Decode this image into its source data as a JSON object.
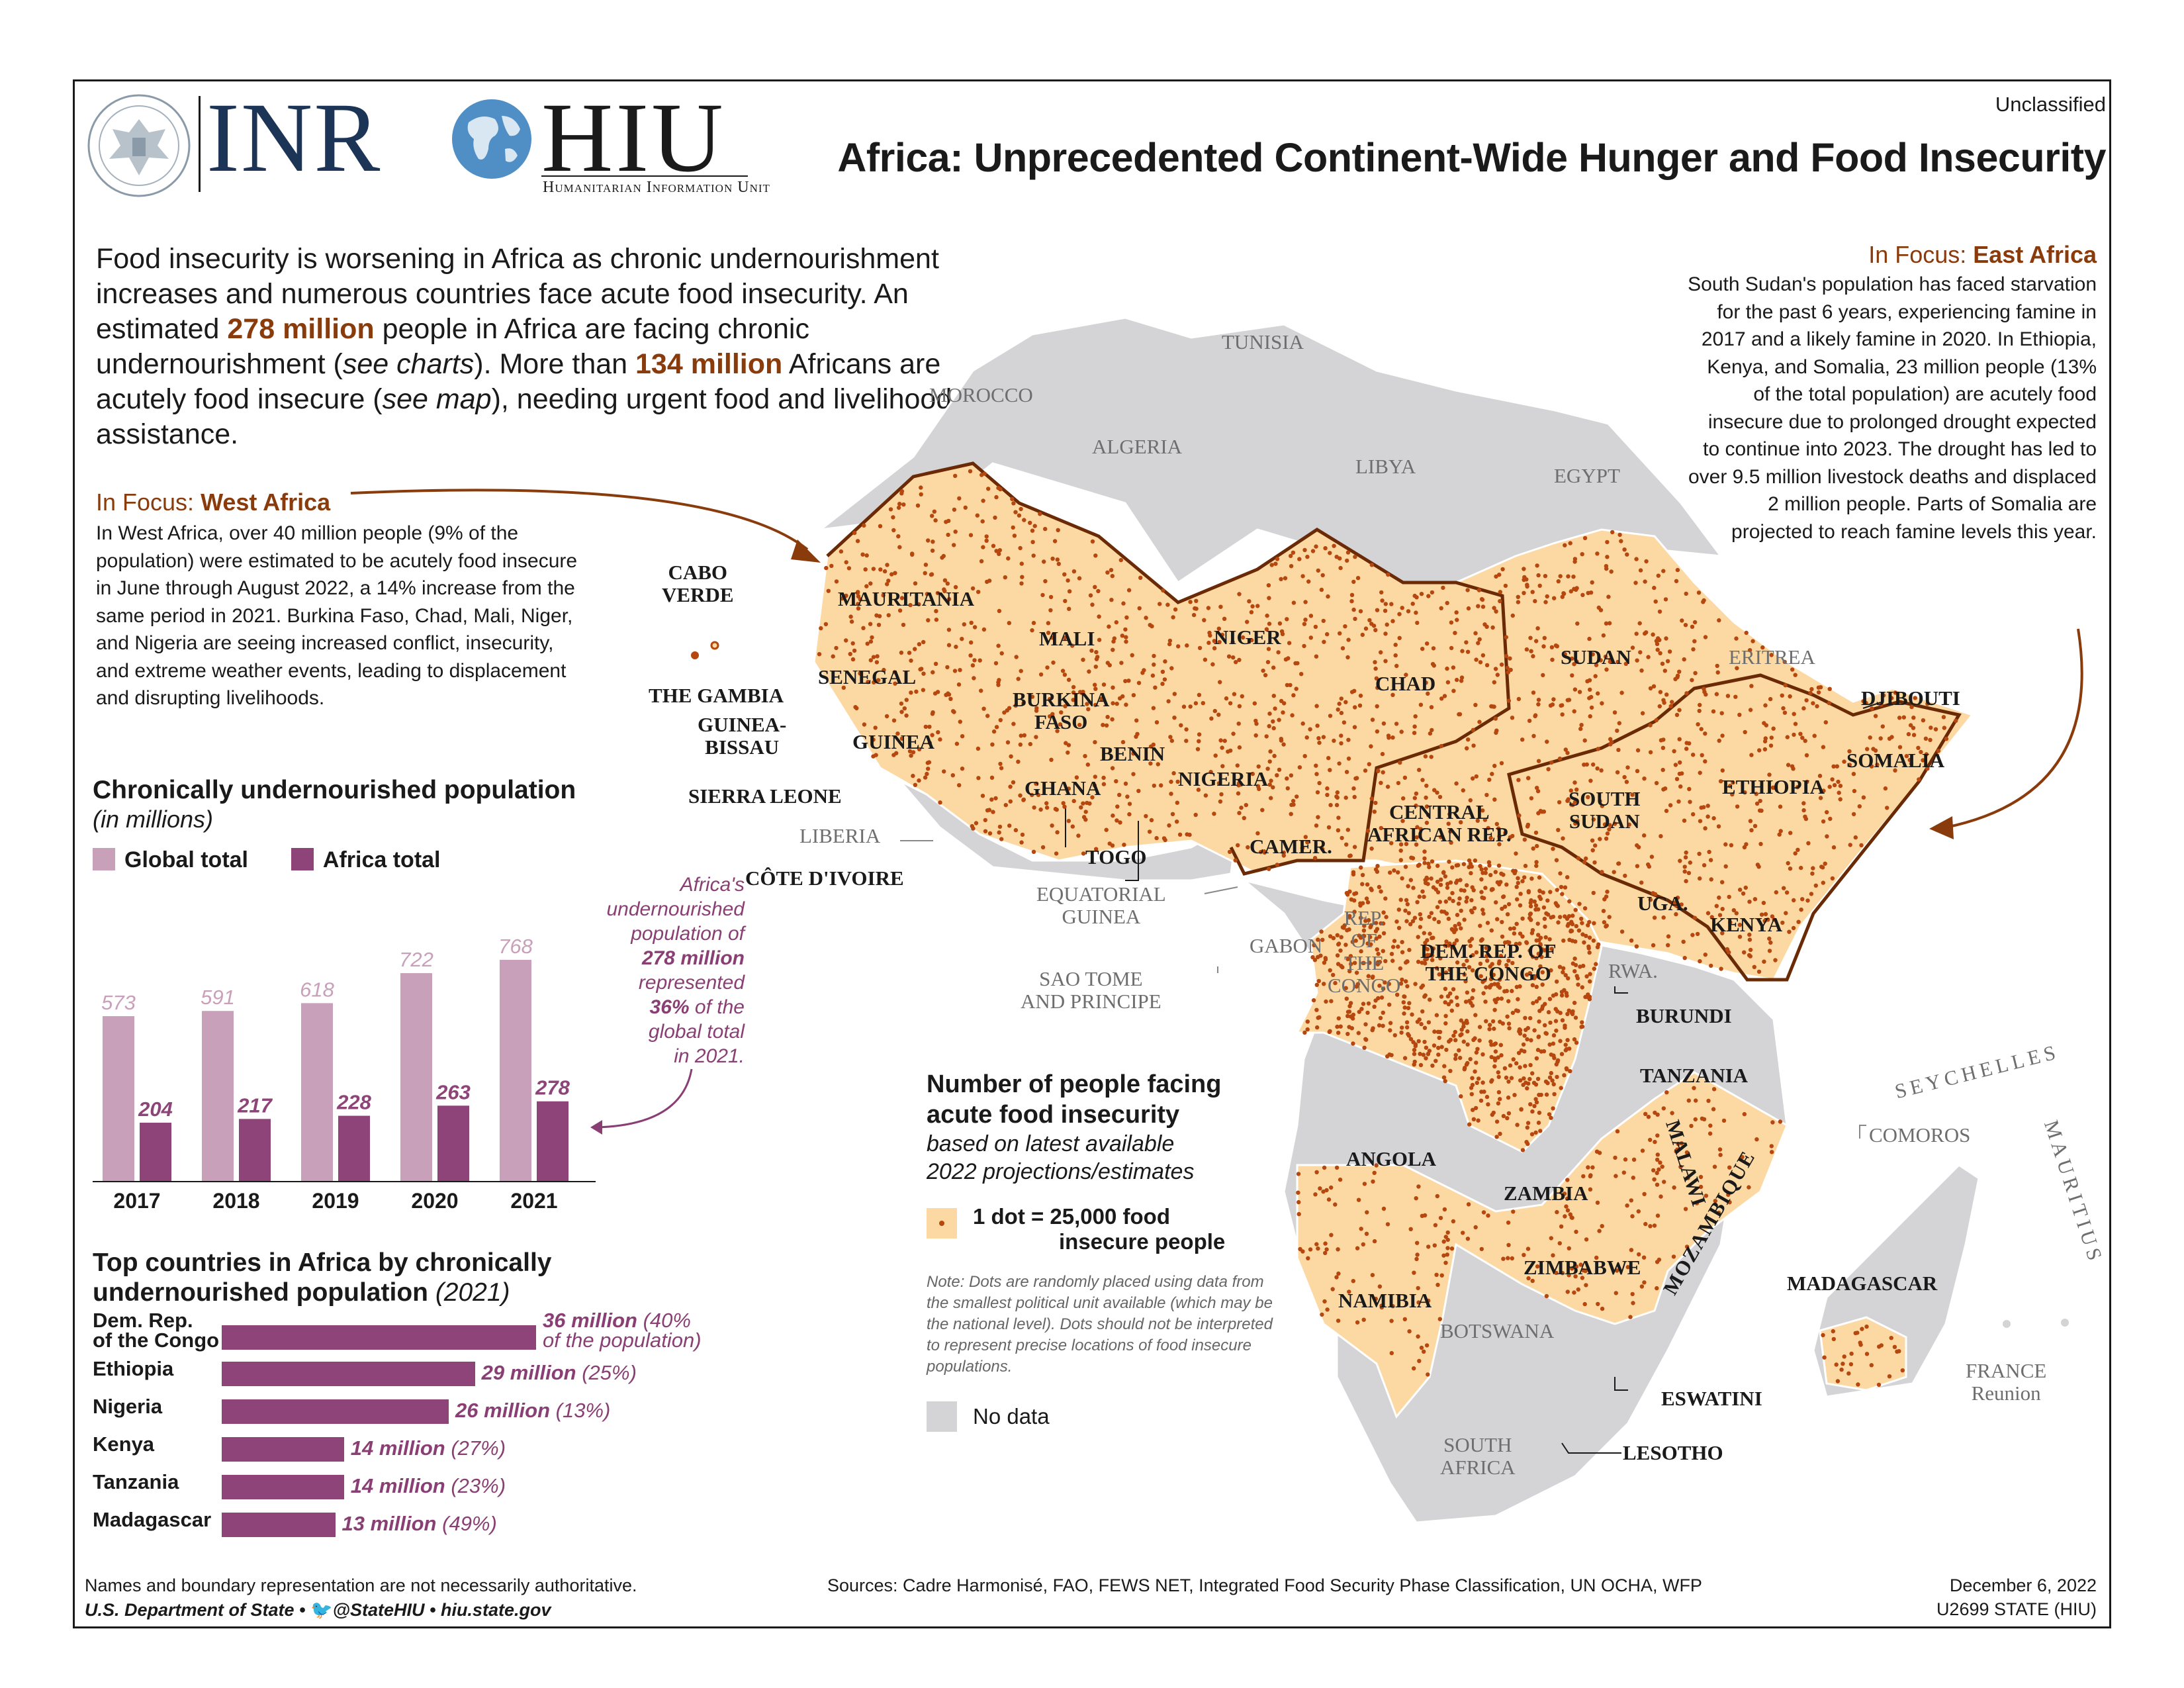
{
  "header": {
    "classification": "Unclassified",
    "title": "Africa: Unprecedented Continent-Wide Hunger and Food Insecurity",
    "logo_inr": "INR",
    "logo_hiu": "HIU",
    "logo_hiu_sub": "Humanitarian Information Unit"
  },
  "intro": {
    "p1": "Food insecurity is worsening in Africa as chronic undernourishment increases and numerous countries face acute food insecurity. An estimated ",
    "h1": "278 million",
    "p2": " people in Africa are facing chronic undernourishment (",
    "i1": "see charts",
    "p3": "). More than ",
    "h2": "134 million",
    "p4": " Africans are acutely food insecure (",
    "i2": "see map",
    "p5": "), needing urgent food and livelihood assistance."
  },
  "west_africa": {
    "prefix": "In Focus: ",
    "title": "West Africa",
    "text": "In West Africa, over 40 million people (9% of the population) were estimated to be acutely food insecure in June through August 2022, a 14% increase from the same period in 2021. Burkina Faso, Chad, Mali, Niger, and Nigeria are seeing increased conflict, insecurity, and extreme weather events, leading to displacement and disrupting livelihoods."
  },
  "east_africa": {
    "prefix": "In Focus: ",
    "title": "East Africa",
    "text": "South Sudan's population has faced starvation for the past 6 years, experiencing famine in 2017 and a likely famine in 2020. In Ethiopia, Kenya, and Somalia, 23 million people (13% of the total population) are acutely food insecure due to prolonged drought expected to continue into 2023. The drought has led to over 9.5 million livestock deaths and displaced 2 million people. Parts of Somalia are projected to reach famine levels this year."
  },
  "chart_data": [
    {
      "type": "bar",
      "title": "Chronically undernourished population",
      "subtitle": "(in millions)",
      "categories": [
        "2017",
        "2018",
        "2019",
        "2020",
        "2021"
      ],
      "series": [
        {
          "name": "Global total",
          "values": [
            573,
            591,
            618,
            722,
            768
          ],
          "color": "#c9a0b9"
        },
        {
          "name": "Africa total",
          "values": [
            204,
            217,
            228,
            263,
            278
          ],
          "color": "#8e4478"
        }
      ],
      "ylim": [
        0,
        800
      ],
      "legend": "top-left",
      "annotation": {
        "l1": "Africa's",
        "l2": "undernourished",
        "l3": "population of",
        "l4": "278 million",
        "l5": "represented",
        "l6": "36%",
        "l6b": " of the",
        "l7": "global total",
        "l8": "in 2021."
      }
    },
    {
      "type": "bar",
      "orientation": "horizontal",
      "title": "Top countries in Africa by chronically undernourished population",
      "title_year": "(2021)",
      "categories": [
        "Dem. Rep. of the Congo",
        "Ethiopia",
        "Nigeria",
        "Kenya",
        "Tanzania",
        "Madagascar"
      ],
      "values": [
        36,
        29,
        26,
        14,
        14,
        13
      ],
      "unit": "million",
      "percent_of_population": [
        "(40% of the population)",
        "(25%)",
        "(13%)",
        "(27%)",
        "(23%)",
        "(49%)"
      ],
      "value_labels": [
        "36 million",
        "29 million",
        "26 million",
        "14 million",
        "14 million",
        "13 million"
      ],
      "label_lines": [
        [
          "Dem. Rep.",
          "of the Congo"
        ],
        [
          "Ethiopia"
        ],
        [
          "Nigeria"
        ],
        [
          "Kenya"
        ],
        [
          "Tanzania"
        ],
        [
          "Madagascar"
        ]
      ],
      "pct_lines": [
        [
          "(40%",
          "of the population)"
        ],
        [
          "(25%)"
        ],
        [
          "(13%)"
        ],
        [
          "(27%)"
        ],
        [
          "(23%)"
        ],
        [
          "(49%)"
        ]
      ],
      "color": "#8e4478"
    }
  ],
  "map_legend": {
    "title1": "Number of people facing",
    "title2": "acute food insecurity",
    "sub1": "based on latest available",
    "sub2": "2022 projections/estimates",
    "dot1": "1 dot = 25,000 food",
    "dot2": "insecure people",
    "note": "Note: Dots are randomly placed using data from the smallest political unit available (which may be the national level). Dots should not be interpreted to represent precise locations of food insecure populations.",
    "nodata": "No data",
    "colors": {
      "data_fill": "#fcd9a3",
      "dot": "#b5470f",
      "nodata_fill": "#d4d4d6",
      "outline": "#6b2a06"
    }
  },
  "map_labels": {
    "tunisia": "TUNISIA",
    "morocco": "MOROCCO",
    "algeria": "ALGERIA",
    "libya": "LIBYA",
    "egypt": "EGYPT",
    "cabo_verde": [
      "CABO",
      "VERDE"
    ],
    "mauritania": "MAURITANIA",
    "mali": "MALI",
    "niger": "NIGER",
    "chad": "CHAD",
    "sudan": "SUDAN",
    "eritrea": "ERITREA",
    "djibouti": "DJIBOUTI",
    "senegal": "SENEGAL",
    "the_gambia": "THE GAMBIA",
    "guinea_bissau": [
      "GUINEA-",
      "BISSAU"
    ],
    "guinea": "GUINEA",
    "burkina_faso": [
      "BURKINA",
      "FASO"
    ],
    "benin": "BENIN",
    "nigeria": "NIGERIA",
    "ethiopia": "ETHIOPIA",
    "somalia": "SOMALIA",
    "sierra_leone": "SIERRA LEONE",
    "ghana": "GHANA",
    "liberia": "LIBERIA",
    "togo": "TOGO",
    "cote_divoire": "CÔTE D'IVOIRE",
    "camer": "CAMER.",
    "car": [
      "CENTRAL",
      "AFRICAN REP."
    ],
    "south_sudan": [
      "SOUTH",
      "SUDAN"
    ],
    "uga": "UGA.",
    "kenya": "KENYA",
    "eq_guinea": [
      "EQUATORIAL",
      "GUINEA"
    ],
    "gabon": "GABON",
    "rep_congo": [
      "REP.",
      "OF",
      "THE",
      "CONGO"
    ],
    "drc": [
      "DEM. REP. OF",
      "THE CONGO"
    ],
    "rwa": "RWA.",
    "burundi": "BURUNDI",
    "sao_tome": [
      "SAO TOME",
      "AND PRINCIPE"
    ],
    "tanzania": "TANZANIA",
    "seychelles": "SEYCHELLES",
    "comoros": "COMOROS",
    "mauritius": "MAURITIUS",
    "angola": "ANGOLA",
    "malawi": "MALAWI",
    "zambia": "ZAMBIA",
    "mozambique": "MOZAMBIQUE",
    "zimbabwe": "ZIMBABWE",
    "madagascar": "MADAGASCAR",
    "namibia": "NAMIBIA",
    "botswana": "BOTSWANA",
    "france": [
      "FRANCE",
      "Reunion"
    ],
    "eswatini": "ESWATINI",
    "south_africa": [
      "SOUTH",
      "AFRICA"
    ],
    "lesotho": "LESOTHO"
  },
  "footer": {
    "disclaimer": "Names and boundary representation are not necessarily authoritative.",
    "credit": "U.S. Department of State • ",
    "credit_handle": "@StateHIU • hiu.state.gov",
    "sources": "Sources: Cadre Harmonisé, FAO, FEWS NET, Integrated Food Security Phase Classification, UN OCHA, WFP",
    "date": "December 6, 2022",
    "id": "U2699 STATE (HIU)"
  }
}
